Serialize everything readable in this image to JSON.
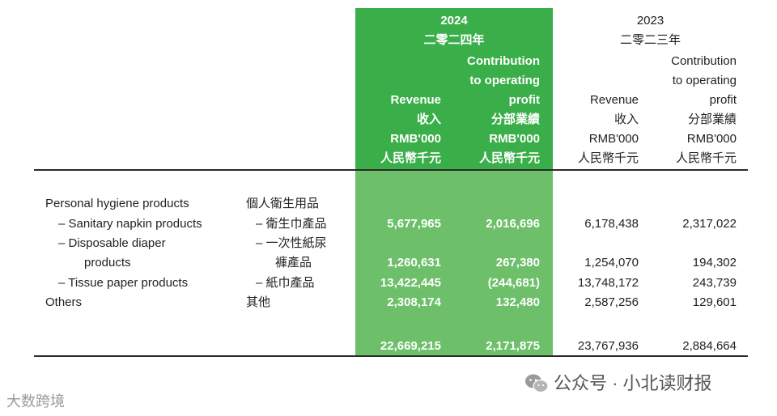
{
  "header": {
    "y2024": {
      "year": "2024",
      "year_cn": "二零二四年",
      "revenue": {
        "lines": [
          "Revenue",
          "收入",
          "RMB'000",
          "人民幣千元"
        ]
      },
      "op": {
        "lines": [
          "Contribution",
          "to operating",
          "profit",
          "分部業績",
          "RMB'000",
          "人民幣千元"
        ]
      }
    },
    "y2023": {
      "year": "2023",
      "year_cn": "二零二三年",
      "revenue": {
        "lines": [
          "Revenue",
          "收入",
          "RMB'000",
          "人民幣千元"
        ]
      },
      "op": {
        "lines": [
          "Contribution",
          "to operating",
          "profit",
          "分部業績",
          "RMB'000",
          "人民幣千元"
        ]
      }
    }
  },
  "rows": [
    {
      "en": "Personal hygiene products",
      "cn": "個人衛生用品",
      "rev24": "",
      "op24": "",
      "rev23": "",
      "op23": ""
    },
    {
      "en": "– Sanitary napkin products",
      "cn": "– 衛生巾產品",
      "rev24": "5,677,965",
      "op24": "2,016,696",
      "rev23": "6,178,438",
      "op23": "2,317,022"
    },
    {
      "en": "– Disposable diaper",
      "cn": "– 一次性紙尿",
      "rev24": "",
      "op24": "",
      "rev23": "",
      "op23": ""
    },
    {
      "en": "products",
      "cn": "褲產品",
      "rev24": "1,260,631",
      "op24": "267,380",
      "rev23": "1,254,070",
      "op23": "194,302"
    },
    {
      "en": "– Tissue paper products",
      "cn": "– 紙巾產品",
      "rev24": "13,422,445",
      "op24": "(244,681)",
      "rev23": "13,748,172",
      "op23": "243,739"
    },
    {
      "en": "Others",
      "cn": "其他",
      "rev24": "2,308,174",
      "op24": "132,480",
      "rev23": "2,587,256",
      "op23": "129,601"
    }
  ],
  "totals": {
    "rev24": "22,669,215",
    "op24": "2,171,875",
    "rev23": "23,767,936",
    "op23": "2,884,664"
  },
  "watermark": {
    "right": "公众号 · 小北读财报",
    "left": "大数跨境"
  }
}
